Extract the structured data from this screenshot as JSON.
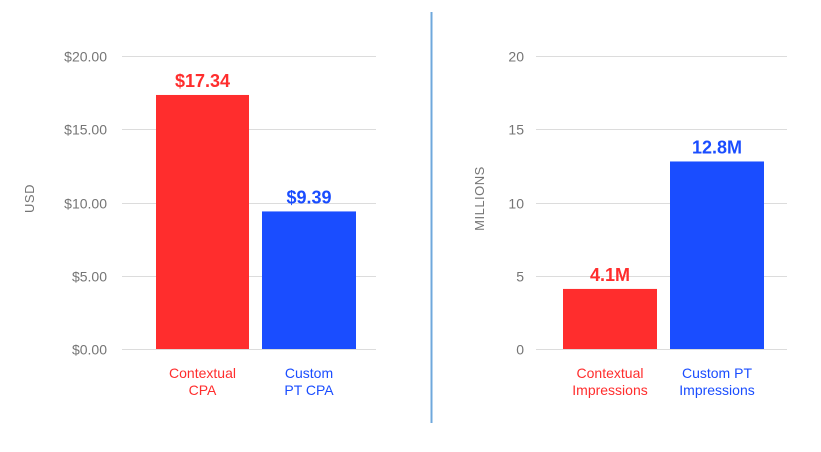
{
  "chart_data": [
    {
      "type": "bar",
      "ylabel": "USD",
      "ylim": [
        0,
        20
      ],
      "yticks": [
        "$0.00",
        "$5.00",
        "$10.00",
        "$15.00",
        "$20.00"
      ],
      "grid": true,
      "categories": [
        [
          "Contextual",
          "CPA"
        ],
        [
          "Custom",
          "PT CPA"
        ]
      ],
      "values": [
        17.34,
        9.39
      ],
      "data_labels": [
        "$17.34",
        "$9.39"
      ],
      "colors": [
        "#ff2d2d",
        "#1a4dff"
      ]
    },
    {
      "type": "bar",
      "ylabel": "MILLIONS",
      "ylim": [
        0,
        20
      ],
      "yticks": [
        "0",
        "5",
        "10",
        "15",
        "20"
      ],
      "grid": true,
      "categories": [
        [
          "Contextual",
          "Impressions"
        ],
        [
          "Custom PT",
          "Impressions"
        ]
      ],
      "values": [
        4.1,
        12.8
      ],
      "data_labels": [
        "4.1M",
        "12.8M"
      ],
      "colors": [
        "#ff2d2d",
        "#1a4dff"
      ]
    }
  ],
  "divider_color": "#6fa8dc"
}
